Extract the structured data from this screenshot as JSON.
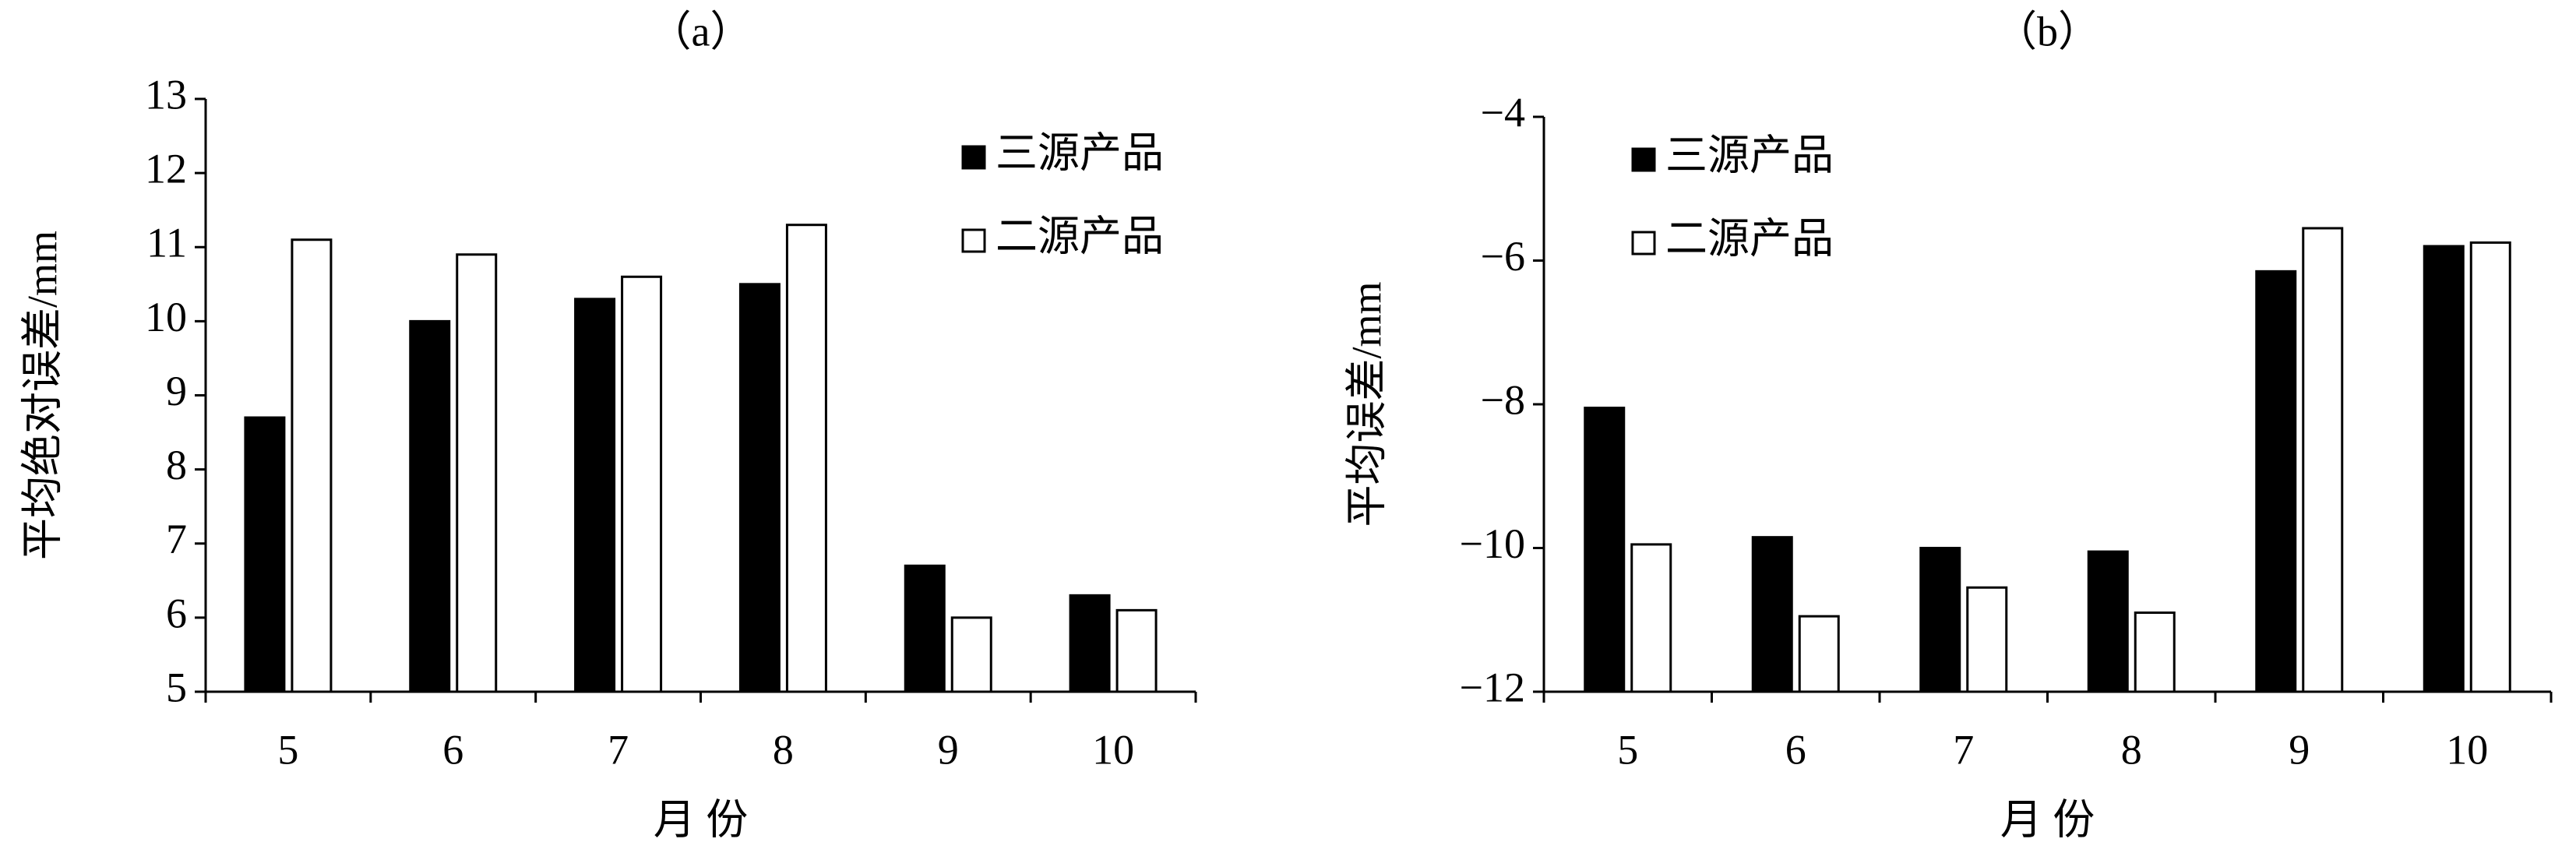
{
  "chart_data": [
    {
      "type": "bar",
      "title": "（a）",
      "x_label": "月 份",
      "y_label": "平均绝对误差/mm",
      "categories": [
        "5",
        "6",
        "7",
        "8",
        "9",
        "10"
      ],
      "series": [
        {
          "name": "三源产品",
          "color": "#000000",
          "values": [
            8.7,
            10,
            10.3,
            10.5,
            6.7,
            6.3
          ]
        },
        {
          "name": "二源产品",
          "color": "#ffffff",
          "values": [
            11.1,
            10.9,
            10.6,
            11.3,
            6.0,
            6.1
          ]
        }
      ],
      "ylim": [
        5,
        13
      ],
      "yticks": [
        5,
        6,
        7,
        8,
        9,
        10,
        11,
        12,
        13
      ],
      "legend": "upper right"
    },
    {
      "type": "bar",
      "title": "（b）",
      "x_label": "月 份",
      "y_label": "平均误差/mm",
      "categories": [
        "5",
        "6",
        "7",
        "8",
        "9",
        "10"
      ],
      "series": [
        {
          "name": "三源产品",
          "color": "#000000",
          "values": [
            -8.05,
            -9.85,
            -10,
            -10.05,
            -6.15,
            -5.8
          ]
        },
        {
          "name": "二源产品",
          "color": "#ffffff",
          "values": [
            -9.95,
            -10.95,
            -10.55,
            -10.9,
            -5.55,
            -5.75
          ]
        }
      ],
      "ylim": [
        -12,
        -4
      ],
      "yticks": [
        {
          "value": -12,
          "label": "−12"
        },
        {
          "value": -10,
          "label": "−10"
        },
        {
          "value": -8,
          "label": "−8"
        },
        {
          "value": -6,
          "label": "−6"
        },
        {
          "value": -4,
          "label": "−4"
        }
      ],
      "legend": "upper left"
    }
  ]
}
